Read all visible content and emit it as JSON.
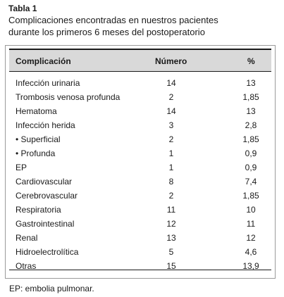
{
  "caption": {
    "label": "Tabla 1",
    "title_line1": "Complicaciones encontradas en nuestros pacientes",
    "title_line2": "durante los primeros 6 meses del postoperatorio"
  },
  "table": {
    "headers": {
      "name": "Complicación",
      "count": "Número",
      "percent": "%"
    },
    "rows": [
      {
        "name": "Infección urinaria",
        "count": "14",
        "percent": "13"
      },
      {
        "name": "Trombosis venosa profunda",
        "count": "2",
        "percent": "1,85"
      },
      {
        "name": "Hematoma",
        "count": "14",
        "percent": "13"
      },
      {
        "name": "Infección herida",
        "count": "3",
        "percent": "2,8"
      },
      {
        "name": "• Superficial",
        "count": "2",
        "percent": "1,85"
      },
      {
        "name": "• Profunda",
        "count": "1",
        "percent": "0,9"
      },
      {
        "name": "EP",
        "count": "1",
        "percent": "0,9"
      },
      {
        "name": "Cardiovascular",
        "count": "8",
        "percent": "7,4"
      },
      {
        "name": "Cerebrovascular",
        "count": "2",
        "percent": "1,85"
      },
      {
        "name": "Respiratoria",
        "count": "11",
        "percent": "10"
      },
      {
        "name": "Gastrointestinal",
        "count": "12",
        "percent": "11"
      },
      {
        "name": "Renal",
        "count": "13",
        "percent": "12"
      },
      {
        "name": "Hidroelectrolítica",
        "count": "5",
        "percent": "4,6"
      },
      {
        "name": "Otras",
        "count": "15",
        "percent": "13,9"
      }
    ]
  },
  "footnote": "EP: embolia pulmonar."
}
